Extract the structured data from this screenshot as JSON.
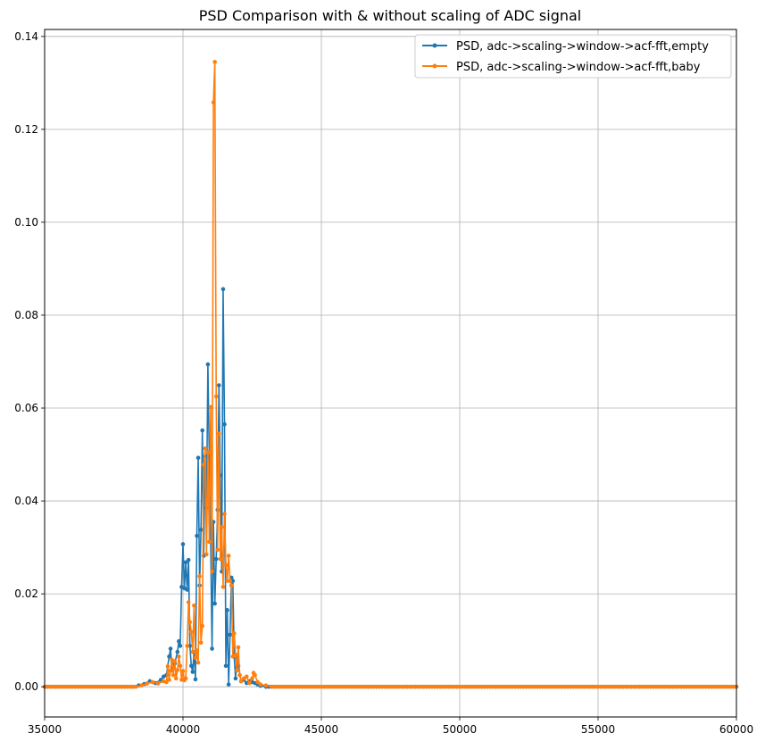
{
  "chart_data": {
    "type": "line",
    "title": "PSD Comparison with & without scaling of ADC signal",
    "xlabel": "",
    "ylabel": "",
    "xlim": [
      35000,
      60000
    ],
    "ylim": [
      -0.0065,
      0.1415
    ],
    "xticks": [
      35000,
      40000,
      45000,
      50000,
      55000,
      60000
    ],
    "xtick_labels": [
      "35000",
      "40000",
      "45000",
      "50000",
      "55000",
      "60000"
    ],
    "yticks": [
      0.0,
      0.02,
      0.04,
      0.06,
      0.08,
      0.1,
      0.12,
      0.14
    ],
    "ytick_labels": [
      "0.00",
      "0.02",
      "0.04",
      "0.06",
      "0.08",
      "0.10",
      "0.12",
      "0.14"
    ],
    "grid": true,
    "legend_position": "top-right",
    "baseline": {
      "x_start": 35000,
      "x_end": 60000,
      "step": 100,
      "value": 0.0
    },
    "series": [
      {
        "name": "PSD, adc->scaling->window->acf-fft,empty",
        "color": "#1f77b4",
        "marker": "dot",
        "points": [
          [
            38200,
            0.0
          ],
          [
            38400,
            0.0003
          ],
          [
            38600,
            0.0006
          ],
          [
            38800,
            0.0012
          ],
          [
            39000,
            0.0008
          ],
          [
            39200,
            0.0015
          ],
          [
            39300,
            0.0022
          ],
          [
            39400,
            0.0025
          ],
          [
            39500,
            0.0065
          ],
          [
            39550,
            0.0082
          ],
          [
            39600,
            0.0035
          ],
          [
            39700,
            0.005
          ],
          [
            39800,
            0.0075
          ],
          [
            39850,
            0.0098
          ],
          [
            39900,
            0.0088
          ],
          [
            39950,
            0.0215
          ],
          [
            40000,
            0.0307
          ],
          [
            40050,
            0.0212
          ],
          [
            40100,
            0.0268
          ],
          [
            40150,
            0.0209
          ],
          [
            40200,
            0.0273
          ],
          [
            40250,
            0.0088
          ],
          [
            40300,
            0.0045
          ],
          [
            40350,
            0.0032
          ],
          [
            40400,
            0.0075
          ],
          [
            40450,
            0.0016
          ],
          [
            40500,
            0.0325
          ],
          [
            40550,
            0.0493
          ],
          [
            40600,
            0.0218
          ],
          [
            40650,
            0.0338
          ],
          [
            40700,
            0.0552
          ],
          [
            40750,
            0.0282
          ],
          [
            40800,
            0.0496
          ],
          [
            40850,
            0.0385
          ],
          [
            40900,
            0.0694
          ],
          [
            40950,
            0.0492
          ],
          [
            41000,
            0.0312
          ],
          [
            41050,
            0.0082
          ],
          [
            41100,
            0.0355
          ],
          [
            41150,
            0.0179
          ],
          [
            41200,
            0.0275
          ],
          [
            41250,
            0.0381
          ],
          [
            41300,
            0.0649
          ],
          [
            41350,
            0.0455
          ],
          [
            41400,
            0.0248
          ],
          [
            41450,
            0.0856
          ],
          [
            41500,
            0.0565
          ],
          [
            41550,
            0.0045
          ],
          [
            41600,
            0.0165
          ],
          [
            41650,
            0.0005
          ],
          [
            41700,
            0.0112
          ],
          [
            41750,
            0.0235
          ],
          [
            41800,
            0.0228
          ],
          [
            41850,
            0.0065
          ],
          [
            41900,
            0.0018
          ],
          [
            41950,
            0.0068
          ],
          [
            42000,
            0.0045
          ],
          [
            42100,
            0.0012
          ],
          [
            42200,
            0.0015
          ],
          [
            42300,
            0.0008
          ],
          [
            42400,
            0.0012
          ],
          [
            42500,
            0.001
          ],
          [
            42600,
            0.0008
          ],
          [
            42700,
            0.0005
          ],
          [
            42800,
            0.0002
          ],
          [
            43000,
            0.0
          ]
        ]
      },
      {
        "name": "PSD, adc->scaling->window->acf-fft,baby",
        "color": "#ff7f0e",
        "marker": "dot",
        "points": [
          [
            38300,
            0.0
          ],
          [
            38500,
            0.0003
          ],
          [
            38700,
            0.0007
          ],
          [
            38900,
            0.001
          ],
          [
            39100,
            0.0007
          ],
          [
            39300,
            0.0012
          ],
          [
            39400,
            0.001
          ],
          [
            39450,
            0.0044
          ],
          [
            39500,
            0.0015
          ],
          [
            39550,
            0.0035
          ],
          [
            39600,
            0.0058
          ],
          [
            39650,
            0.0025
          ],
          [
            39700,
            0.0055
          ],
          [
            39750,
            0.0018
          ],
          [
            39800,
            0.0036
          ],
          [
            39850,
            0.0065
          ],
          [
            39900,
            0.0045
          ],
          [
            39950,
            0.0015
          ],
          [
            40000,
            0.0034
          ],
          [
            40050,
            0.0014
          ],
          [
            40100,
            0.0018
          ],
          [
            40150,
            0.0088
          ],
          [
            40200,
            0.0182
          ],
          [
            40250,
            0.0139
          ],
          [
            40300,
            0.0118
          ],
          [
            40350,
            0.0075
          ],
          [
            40400,
            0.0175
          ],
          [
            40450,
            0.0062
          ],
          [
            40500,
            0.0078
          ],
          [
            40550,
            0.0052
          ],
          [
            40600,
            0.0238
          ],
          [
            40650,
            0.0095
          ],
          [
            40700,
            0.0131
          ],
          [
            40750,
            0.0478
          ],
          [
            40800,
            0.0513
          ],
          [
            40850,
            0.0285
          ],
          [
            40900,
            0.0505
          ],
          [
            40950,
            0.0312
          ],
          [
            41000,
            0.0602
          ],
          [
            41050,
            0.0248
          ],
          [
            41100,
            0.1258
          ],
          [
            41150,
            0.1345
          ],
          [
            41200,
            0.0625
          ],
          [
            41250,
            0.0295
          ],
          [
            41300,
            0.0545
          ],
          [
            41350,
            0.0275
          ],
          [
            41400,
            0.0344
          ],
          [
            41450,
            0.0215
          ],
          [
            41500,
            0.0372
          ],
          [
            41550,
            0.0262
          ],
          [
            41600,
            0.0228
          ],
          [
            41650,
            0.0282
          ],
          [
            41700,
            0.0228
          ],
          [
            41750,
            0.0218
          ],
          [
            41800,
            0.0065
          ],
          [
            41850,
            0.0115
          ],
          [
            41900,
            0.0068
          ],
          [
            41950,
            0.0035
          ],
          [
            42000,
            0.0085
          ],
          [
            42050,
            0.0025
          ],
          [
            42100,
            0.0012
          ],
          [
            42200,
            0.0018
          ],
          [
            42300,
            0.0022
          ],
          [
            42400,
            0.0008
          ],
          [
            42500,
            0.0018
          ],
          [
            42550,
            0.003
          ],
          [
            42600,
            0.0025
          ],
          [
            42700,
            0.001
          ],
          [
            42800,
            0.0005
          ],
          [
            43000,
            0.0003
          ],
          [
            43200,
            0.0
          ]
        ]
      }
    ]
  }
}
